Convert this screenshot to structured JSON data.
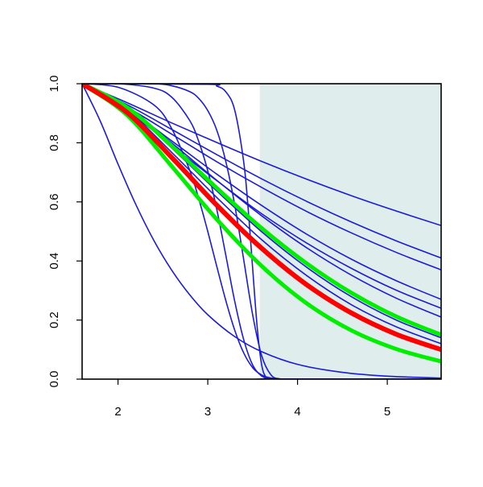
{
  "chart_data": {
    "type": "line",
    "xlim": [
      1.6,
      5.6
    ],
    "ylim": [
      0,
      1
    ],
    "xticks": [
      2,
      3,
      4,
      5
    ],
    "yticks": [
      {
        "value": 0,
        "label": "0.0"
      },
      {
        "value": 0.2,
        "label": "0.2"
      },
      {
        "value": 0.4,
        "label": "0.4"
      },
      {
        "value": 0.6,
        "label": "0.6"
      },
      {
        "value": 0.8,
        "label": "0.8"
      },
      {
        "value": 1,
        "label": "1.0"
      }
    ],
    "shaded_region": {
      "x": [
        3.58,
        5.6
      ],
      "color": "#dfeded"
    },
    "series": [
      {
        "color": "#1c1cd6",
        "width": 1.6,
        "x": [
          1.6,
          1.8,
          2.0,
          2.2,
          2.4,
          2.6,
          2.8,
          3.0,
          3.3,
          3.6,
          4.0,
          4.5,
          5.0,
          5.6
        ],
        "values": [
          1,
          0.875,
          0.728,
          0.59,
          0.469,
          0.368,
          0.285,
          0.218,
          0.144,
          0.093,
          0.05,
          0.023,
          0.01,
          0.0035
        ]
      },
      {
        "color": "#1c1cd6",
        "width": 1.6,
        "x": [
          1.6,
          2.0,
          2.4,
          2.6,
          2.8,
          2.9,
          3.0,
          3.1,
          3.2,
          3.3,
          3.4,
          3.5,
          3.6,
          3.7,
          3.8,
          4.0,
          5.6
        ],
        "values": [
          1,
          0.988,
          0.928,
          0.847,
          0.706,
          0.61,
          0.5,
          0.382,
          0.267,
          0.166,
          0.089,
          0.039,
          0.014,
          0.004,
          0.001,
          0,
          0
        ]
      },
      {
        "color": "#1c1cd6",
        "width": 1.6,
        "x": [
          1.6,
          2.0,
          2.4,
          2.6,
          2.8,
          2.9,
          3.0,
          3.1,
          3.2,
          3.3,
          3.4,
          3.5,
          3.6,
          3.7,
          3.8,
          4.0,
          5.6
        ],
        "values": [
          1,
          1,
          0.985,
          0.954,
          0.875,
          0.804,
          0.705,
          0.575,
          0.421,
          0.264,
          0.134,
          0.048,
          0.011,
          0.001,
          0,
          0,
          0
        ]
      },
      {
        "color": "#1c1cd6",
        "width": 1.6,
        "x": [
          1.6,
          2.0,
          2.4,
          2.6,
          2.8,
          2.9,
          3.0,
          3.1,
          3.2,
          3.3,
          3.4,
          3.5,
          3.6,
          3.7,
          3.8,
          4.0,
          5.6
        ],
        "values": [
          1,
          1,
          1,
          0.993,
          0.973,
          0.95,
          0.909,
          0.843,
          0.738,
          0.59,
          0.405,
          0.218,
          0.08,
          0.016,
          0.001,
          0,
          0
        ]
      },
      {
        "color": "#1c1cd6",
        "width": 1.6,
        "x": [
          1.6,
          3.0,
          3.1,
          3.2,
          3.3,
          3.4,
          3.45,
          3.5,
          3.55,
          3.6,
          3.65,
          3.7,
          5.6
        ],
        "values": [
          1,
          0.998,
          0.992,
          0.973,
          0.911,
          0.736,
          0.577,
          0.375,
          0.178,
          0.049,
          0.005,
          0,
          0
        ]
      },
      {
        "color": "#1c1cd6",
        "width": 1.6,
        "x": [
          1.6,
          2.1,
          2.6,
          3.1,
          3.6,
          4.1,
          4.6,
          5.1,
          5.6
        ],
        "values": [
          1,
          0.936,
          0.867,
          0.801,
          0.737,
          0.677,
          0.621,
          0.569,
          0.52
        ]
      },
      {
        "color": "#1c1cd6",
        "width": 1.6,
        "x": [
          1.6,
          2.1,
          2.6,
          3.1,
          3.6,
          4.1,
          4.6,
          5.1,
          5.6
        ],
        "values": [
          1,
          0.929,
          0.845,
          0.76,
          0.678,
          0.602,
          0.532,
          0.468,
          0.41
        ]
      },
      {
        "color": "#1c1cd6",
        "width": 1.6,
        "x": [
          1.6,
          2.1,
          2.6,
          3.1,
          3.6,
          4.1,
          4.6,
          5.1,
          5.6
        ],
        "values": [
          1,
          0.921,
          0.829,
          0.736,
          0.649,
          0.568,
          0.495,
          0.429,
          0.37
        ]
      },
      {
        "color": "#1c1cd6",
        "width": 1.6,
        "x": [
          1.6,
          2.1,
          2.6,
          3.1,
          3.6,
          4.1,
          4.6,
          5.1,
          5.6
        ],
        "values": [
          1,
          0.916,
          0.806,
          0.694,
          0.588,
          0.491,
          0.406,
          0.333,
          0.27
        ]
      },
      {
        "color": "#1c1cd6",
        "width": 1.6,
        "x": [
          1.6,
          2.1,
          2.6,
          3.1,
          3.6,
          4.1,
          4.6,
          5.1,
          5.6
        ],
        "values": [
          1,
          0.909,
          0.79,
          0.672,
          0.56,
          0.461,
          0.375,
          0.301,
          0.24
        ]
      },
      {
        "color": "#1c1cd6",
        "width": 1.6,
        "x": [
          1.6,
          2.1,
          2.6,
          3.1,
          3.6,
          4.1,
          4.6,
          5.1,
          5.6
        ],
        "values": [
          1,
          0.918,
          0.799,
          0.673,
          0.553,
          0.445,
          0.352,
          0.274,
          0.21
        ]
      },
      {
        "color": "#1c1cd6",
        "width": 1.6,
        "x": [
          1.6,
          2.1,
          2.6,
          3.1,
          3.6,
          4.1,
          4.6,
          5.1,
          5.6
        ],
        "values": [
          1,
          0.917,
          0.782,
          0.637,
          0.499,
          0.379,
          0.279,
          0.2,
          0.14
        ]
      },
      {
        "color": "#1c1cd6",
        "width": 1.6,
        "x": [
          1.6,
          2.1,
          2.6,
          3.1,
          3.6,
          4.1,
          4.6,
          5.1,
          5.6
        ],
        "values": [
          1,
          0.911,
          0.767,
          0.615,
          0.472,
          0.351,
          0.252,
          0.177,
          0.12
        ]
      },
      {
        "color": "#00ee00",
        "width": 5,
        "x": [
          1.6,
          2.1,
          2.6,
          3.1,
          3.6,
          4.1,
          4.6,
          5.1,
          5.6
        ],
        "values": [
          1,
          0.92,
          0.789,
          0.647,
          0.511,
          0.392,
          0.292,
          0.212,
          0.15
        ]
      },
      {
        "color": "#00ee00",
        "width": 5,
        "x": [
          1.6,
          2.1,
          2.6,
          3.1,
          3.6,
          4.1,
          4.6,
          5.1,
          5.6
        ],
        "values": [
          1,
          0.894,
          0.72,
          0.541,
          0.383,
          0.257,
          0.165,
          0.102,
          0.06
        ]
      },
      {
        "color": "#ff0000",
        "width": 6,
        "x": [
          1.6,
          2.1,
          2.6,
          3.1,
          3.6,
          4.1,
          4.6,
          5.1,
          5.6
        ],
        "values": [
          1,
          0.903,
          0.75,
          0.589,
          0.443,
          0.32,
          0.224,
          0.152,
          0.1
        ]
      }
    ]
  }
}
